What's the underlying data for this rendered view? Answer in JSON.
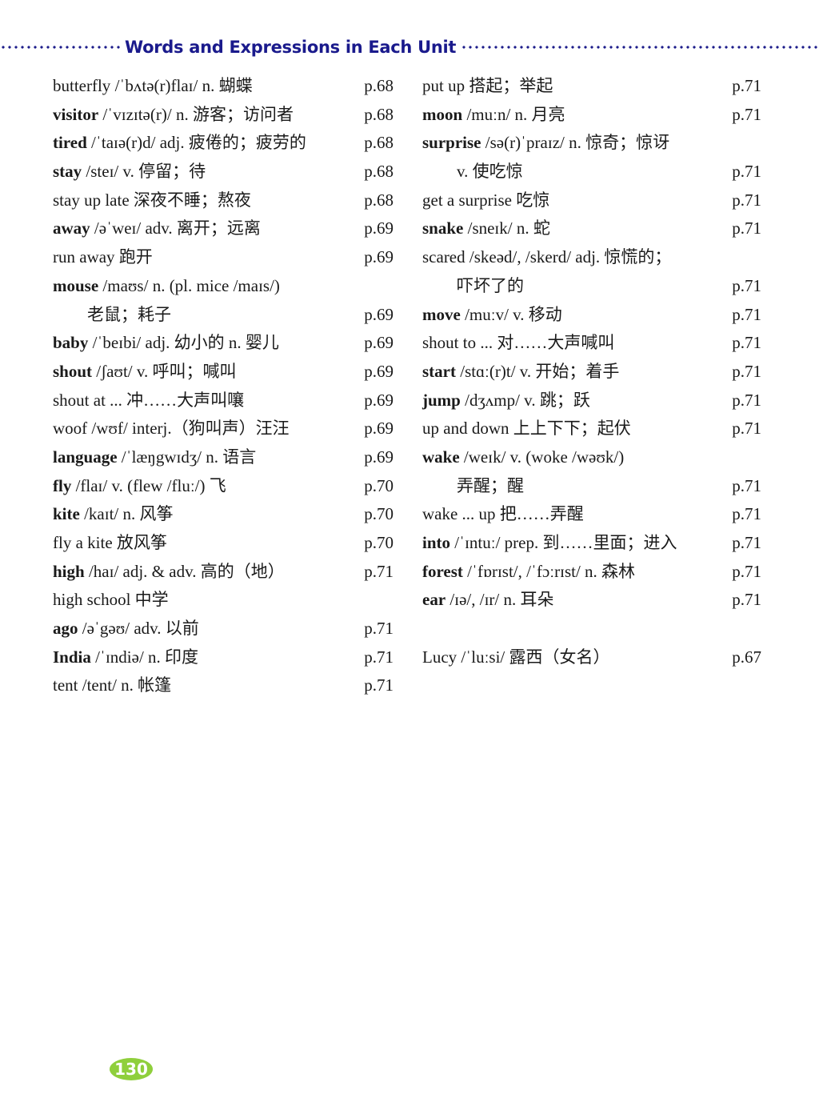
{
  "header": {
    "title": "Words and Expressions in Each Unit"
  },
  "left_column": [
    {
      "w": "butterfly",
      "b": false,
      "rest": " /ˈbʌtə(r)flaɪ/ n. 蝴蝶",
      "page": "p.68"
    },
    {
      "w": "visitor",
      "b": true,
      "rest": " /ˈvɪzɪtə(r)/ n. 游客；访问者",
      "page": "p.68"
    },
    {
      "w": "tired",
      "b": true,
      "rest": " /ˈtaɪə(r)d/ adj. 疲倦的；疲劳的",
      "page": "p.68"
    },
    {
      "w": "stay",
      "b": true,
      "rest": " /steɪ/ v. 停留；待",
      "page": "p.68"
    },
    {
      "w": "stay up late",
      "b": false,
      "rest": " 深夜不睡；熬夜",
      "page": "p.68"
    },
    {
      "w": "away",
      "b": true,
      "rest": " /əˈweɪ/ adv. 离开；远离",
      "page": "p.69"
    },
    {
      "w": "run away",
      "b": false,
      "rest": " 跑开",
      "page": "p.69"
    },
    {
      "w": "mouse",
      "b": true,
      "rest": " /maʊs/ n. (pl. mice /maɪs/)",
      "page": ""
    },
    {
      "w": "",
      "b": false,
      "rest": "老鼠；耗子",
      "page": "p.69",
      "indent": true
    },
    {
      "w": "baby",
      "b": true,
      "rest": " /ˈbeɪbi/ adj. 幼小的  n. 婴儿",
      "page": "p.69"
    },
    {
      "w": "shout",
      "b": true,
      "rest": " /ʃaʊt/ v. 呼叫；喊叫",
      "page": "p.69"
    },
    {
      "w": "shout at ...",
      "b": false,
      "rest": "  冲……大声叫嚷",
      "page": "p.69"
    },
    {
      "w": "woof",
      "b": false,
      "rest": " /wʊf/ interj.（狗叫声）汪汪",
      "page": "p.69"
    },
    {
      "w": "language",
      "b": true,
      "rest": " /ˈlæŋgwɪdʒ/ n. 语言",
      "page": "p.69"
    },
    {
      "w": "fly",
      "b": true,
      "rest": " /flaɪ/ v. (flew /fluː/)  飞",
      "page": "p.70"
    },
    {
      "w": "kite",
      "b": true,
      "rest": " /kaɪt/ n. 风筝",
      "page": "p.70"
    },
    {
      "w": "fly a kite",
      "b": false,
      "rest": "  放风筝",
      "page": "p.70"
    },
    {
      "w": "high",
      "b": true,
      "rest": " /haɪ/ adj. & adv. 高的（地）",
      "page": "p.71"
    },
    {
      "w": "high school",
      "b": false,
      "rest": " 中学",
      "page": ""
    },
    {
      "w": "ago",
      "b": true,
      "rest": " /əˈgəʊ/ adv. 以前",
      "page": "p.71"
    },
    {
      "w": "India",
      "b": true,
      "rest": " /ˈɪndiə/ n. 印度",
      "page": "p.71"
    },
    {
      "w": "tent",
      "b": false,
      "rest": " /tent/ n. 帐篷",
      "page": "p.71"
    }
  ],
  "right_column": [
    {
      "w": "put up",
      "b": false,
      "rest": "  搭起；举起",
      "page": "p.71"
    },
    {
      "w": "moon",
      "b": true,
      "rest": " /muːn/ n. 月亮",
      "page": "p.71"
    },
    {
      "w": "surprise",
      "b": true,
      "rest": " /sə(r)ˈpraɪz/ n. 惊奇；惊讶",
      "page": ""
    },
    {
      "w": "",
      "b": false,
      "rest": "v. 使吃惊",
      "page": "p.71",
      "indent": true
    },
    {
      "w": "get a surprise",
      "b": false,
      "rest": "   吃惊",
      "page": "p.71"
    },
    {
      "w": "snake",
      "b": true,
      "rest": " /sneɪk/ n. 蛇",
      "page": "p.71"
    },
    {
      "w": "scared",
      "b": false,
      "rest": " /skeəd/, /skerd/ adj. 惊慌的；",
      "page": ""
    },
    {
      "w": "",
      "b": false,
      "rest": "吓坏了的",
      "page": "p.71",
      "indent": true
    },
    {
      "w": "move",
      "b": true,
      "rest": " /muːv/ v. 移动",
      "page": "p.71"
    },
    {
      "w": "shout to ...",
      "b": false,
      "rest": "  对……大声喊叫",
      "page": "p.71"
    },
    {
      "w": "start",
      "b": true,
      "rest": " /stɑː(r)t/ v. 开始；着手",
      "page": "p.71"
    },
    {
      "w": "jump",
      "b": true,
      "rest": " /dʒʌmp/ v. 跳；跃",
      "page": "p.71"
    },
    {
      "w": "up and down",
      "b": false,
      "rest": " 上上下下；起伏",
      "page": "p.71"
    },
    {
      "w": "wake",
      "b": true,
      "rest": " /weɪk/ v. (woke /wəʊk/)",
      "page": ""
    },
    {
      "w": "",
      "b": false,
      "rest": "弄醒；醒",
      "page": "p.71",
      "indent": true
    },
    {
      "w": "wake ... up",
      "b": false,
      "rest": "  把……弄醒",
      "page": "p.71"
    },
    {
      "w": "into",
      "b": true,
      "rest": " /ˈɪntuː/ prep. 到……里面；进入",
      "page": "p.71"
    },
    {
      "w": "forest",
      "b": true,
      "rest": " /ˈfɒrɪst/, /ˈfɔːrɪst/ n. 森林",
      "page": "p.71"
    },
    {
      "w": "ear",
      "b": true,
      "rest": " /ɪə/, /ɪr/ n. 耳朵",
      "page": "p.71"
    }
  ],
  "right_names": [
    {
      "w": "Lucy",
      "b": false,
      "rest": " /ˈluːsi/ 露西（女名）",
      "page": "p.67"
    }
  ],
  "footer": {
    "page_number": "130"
  },
  "colors": {
    "title": "#1a1a8c",
    "page_badge": "#8fcf3c"
  }
}
